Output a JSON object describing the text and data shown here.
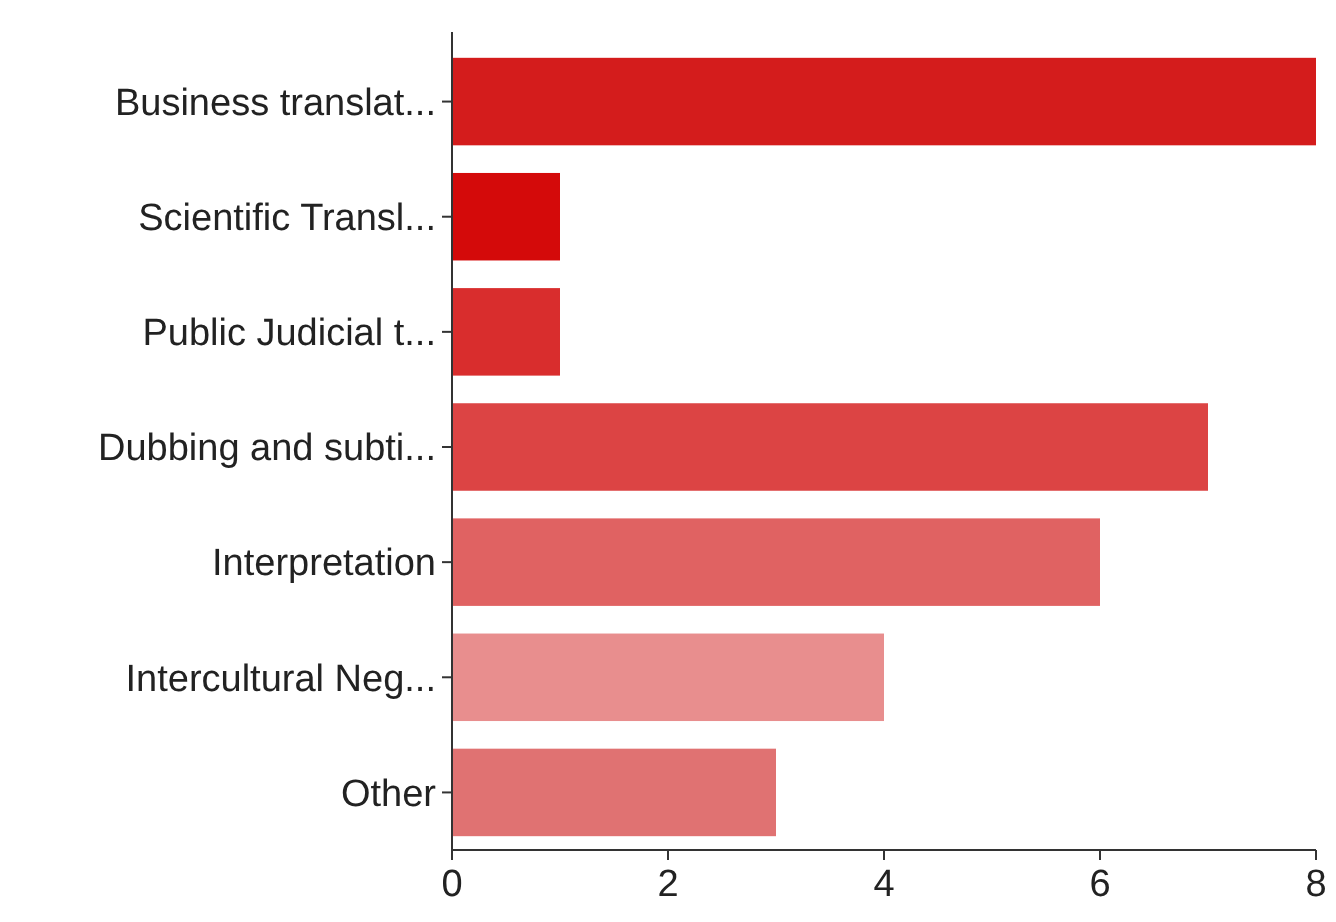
{
  "chart_data": {
    "type": "bar",
    "orientation": "horizontal",
    "categories": [
      "Business translat...",
      "Scientific Transl...",
      "Public Judicial t...",
      "Dubbing and subti...",
      "Interpretation",
      "Intercultural Neg...",
      "Other"
    ],
    "values": [
      8,
      1,
      1,
      7,
      6,
      4,
      3
    ],
    "colors": [
      "#d41c1c",
      "#d40a0a",
      "#d92d2d",
      "#dc4444",
      "#e06262",
      "#e88e8e",
      "#e07272"
    ],
    "xlim": [
      0,
      8
    ],
    "xticks": [
      0,
      2,
      4,
      6,
      8
    ],
    "grid": false
  }
}
